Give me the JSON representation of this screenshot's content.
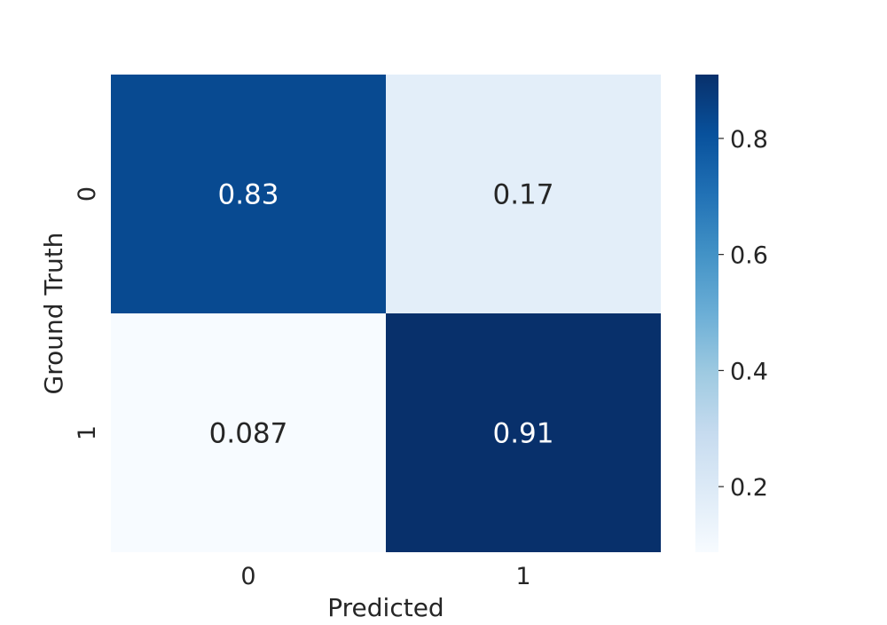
{
  "chart_data": {
    "type": "heatmap",
    "title": "",
    "xlabel": "Predicted",
    "ylabel": "Ground Truth",
    "x_categories": [
      "0",
      "1"
    ],
    "y_categories": [
      "0",
      "1"
    ],
    "values": [
      [
        0.83,
        0.17
      ],
      [
        0.087,
        0.91
      ]
    ],
    "cell_labels": [
      [
        "0.83",
        "0.17"
      ],
      [
        "0.087",
        "0.91"
      ]
    ],
    "colormap": "Blues",
    "colorbar": {
      "range": [
        0.087,
        0.91
      ],
      "ticks": [
        0.2,
        0.4,
        0.6,
        0.8
      ],
      "tick_labels": [
        "0.2",
        "0.4",
        "0.6",
        "0.8"
      ]
    }
  }
}
